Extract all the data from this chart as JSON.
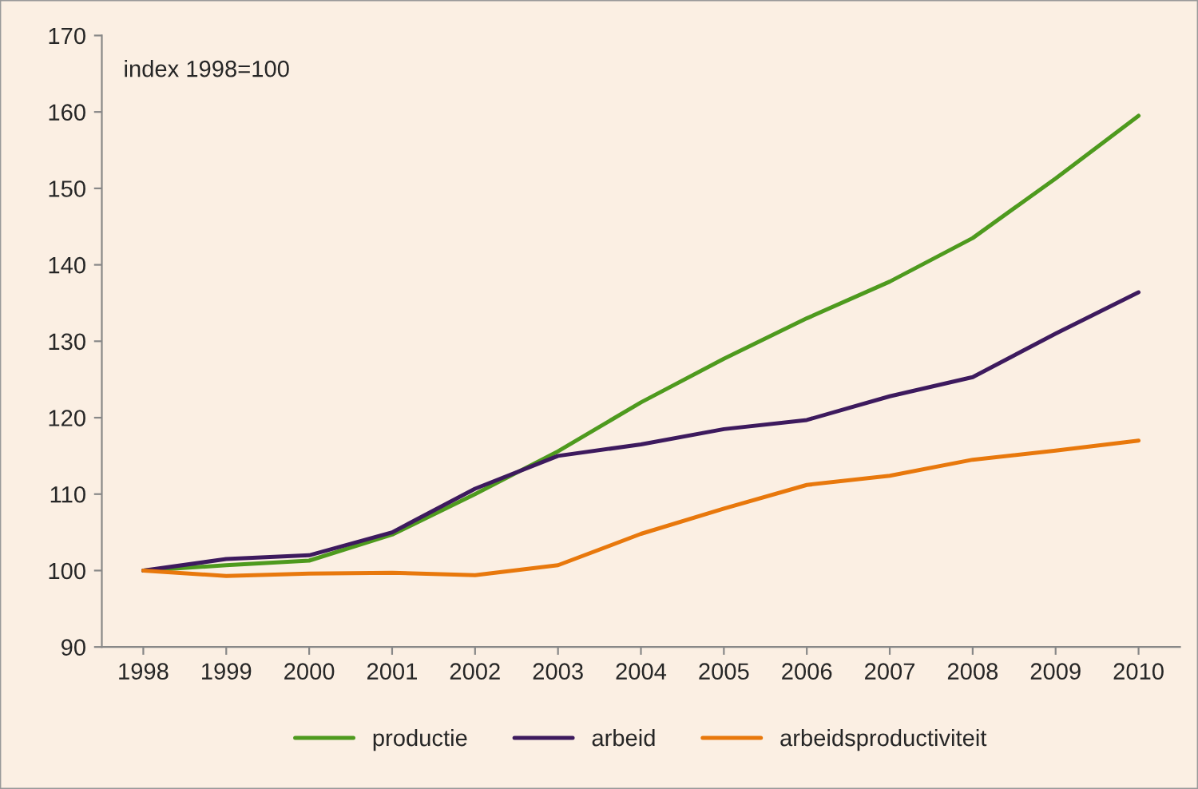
{
  "chart_data": {
    "type": "line",
    "categories": [
      "1998",
      "1999",
      "2000",
      "2001",
      "2002",
      "2003",
      "2004",
      "2005",
      "2006",
      "2007",
      "2008",
      "2009",
      "2010"
    ],
    "series": [
      {
        "name": "productie",
        "color": "#4e9a1e",
        "values": [
          100,
          100.7,
          101.3,
          104.7,
          110,
          115.6,
          122,
          127.7,
          133,
          137.8,
          143.5,
          151.3,
          159.5
        ]
      },
      {
        "name": "arbeid",
        "color": "#3d1a5e",
        "values": [
          100,
          101.5,
          102,
          105,
          110.7,
          115,
          116.5,
          118.5,
          119.7,
          122.8,
          125.3,
          131,
          136.4
        ]
      },
      {
        "name": "arbeidsproductiviteit",
        "color": "#e8780c",
        "values": [
          100,
          99.3,
          99.6,
          99.7,
          99.4,
          100.7,
          104.8,
          108.1,
          111.2,
          112.4,
          114.5,
          115.7,
          117
        ]
      }
    ],
    "ylim": [
      90,
      170
    ],
    "yticks": [
      90,
      100,
      110,
      120,
      130,
      140,
      150,
      160,
      170
    ],
    "annotations": [
      "index 1998=100"
    ],
    "legend": "bottom",
    "grid": false,
    "marker": "none",
    "line_style": "solid"
  }
}
